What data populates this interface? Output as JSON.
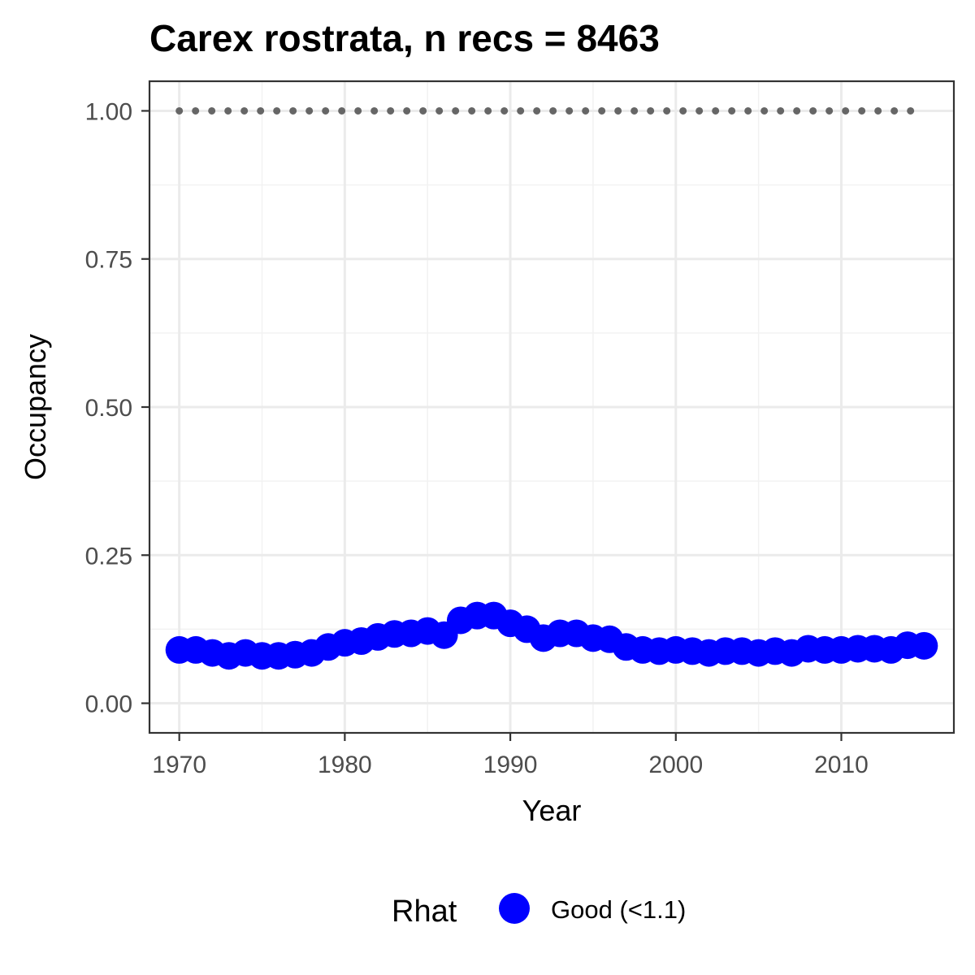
{
  "chart_data": {
    "type": "line",
    "title": "Carex rostrata, n recs = 8463",
    "xlabel": "Year",
    "ylabel": "Occupancy",
    "xlim": [
      1968.2,
      2016.8
    ],
    "ylim": [
      -0.05,
      1.05
    ],
    "x_ticks": [
      1970,
      1980,
      1990,
      2000,
      2010
    ],
    "y_ticks": [
      0.0,
      0.25,
      0.5,
      0.75,
      1.0
    ],
    "x_tick_labels": [
      "1970",
      "1980",
      "1990",
      "2000",
      "2010"
    ],
    "y_tick_labels": [
      "0.00",
      "0.25",
      "0.50",
      "0.75",
      "1.00"
    ],
    "grid": true,
    "legend_position": "bottom",
    "legend": {
      "title": "Rhat",
      "items": [
        {
          "label": "Good (<1.1)",
          "color": "#0000ff"
        }
      ]
    },
    "series": [
      {
        "style": "points-line",
        "color": "#0000ff",
        "x": [
          1970,
          1971,
          1972,
          1973,
          1974,
          1975,
          1976,
          1977,
          1978,
          1979,
          1980,
          1981,
          1982,
          1983,
          1984,
          1985,
          1986,
          1987,
          1988,
          1989,
          1990,
          1991,
          1992,
          1993,
          1994,
          1995,
          1996,
          1997,
          1998,
          1999,
          2000,
          2001,
          2002,
          2003,
          2004,
          2005,
          2006,
          2007,
          2008,
          2009,
          2010,
          2011,
          2012,
          2013,
          2014,
          2015
        ],
        "y": [
          0.09,
          0.09,
          0.085,
          0.08,
          0.085,
          0.08,
          0.08,
          0.082,
          0.085,
          0.095,
          0.102,
          0.105,
          0.112,
          0.117,
          0.118,
          0.122,
          0.115,
          0.14,
          0.148,
          0.148,
          0.135,
          0.125,
          0.11,
          0.118,
          0.118,
          0.11,
          0.108,
          0.095,
          0.09,
          0.088,
          0.09,
          0.088,
          0.085,
          0.088,
          0.088,
          0.085,
          0.088,
          0.085,
          0.092,
          0.09,
          0.09,
          0.092,
          0.092,
          0.09,
          0.098,
          0.097
        ]
      },
      {
        "style": "dotted",
        "color": "#666666",
        "x": [
          1970,
          2015
        ],
        "y": [
          1.0,
          1.0
        ]
      }
    ]
  }
}
